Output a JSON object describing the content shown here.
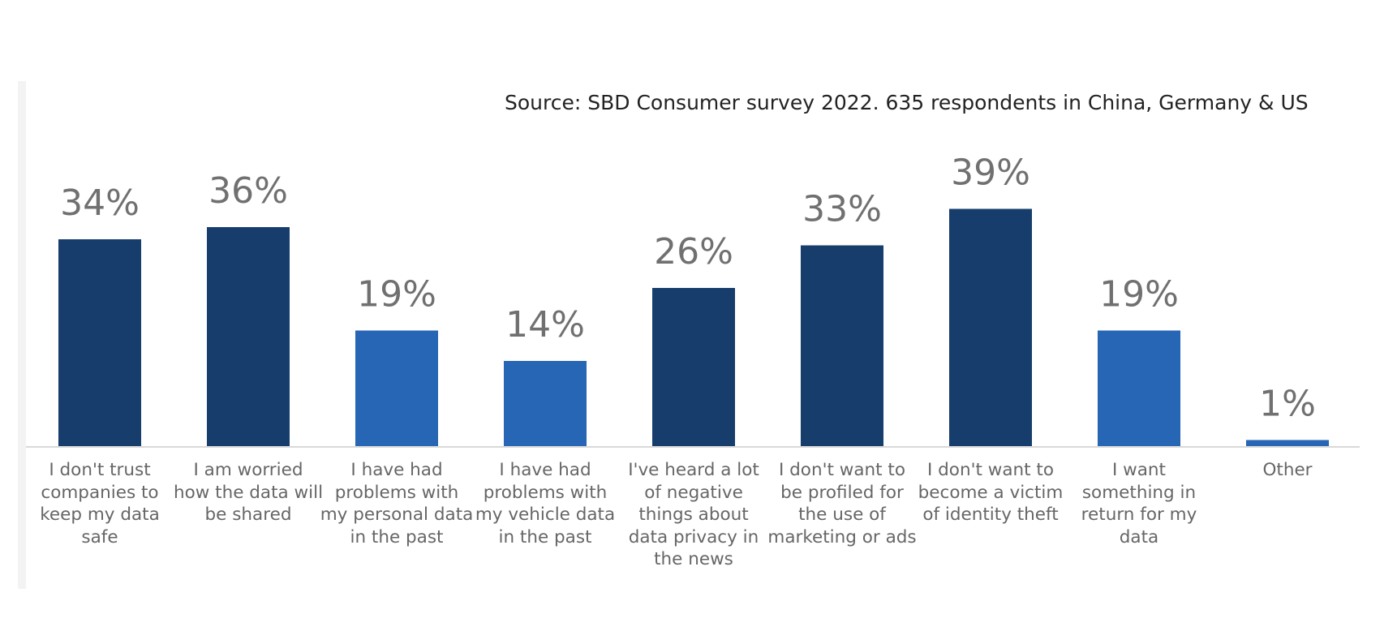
{
  "source_note": "Source: SBD Consumer survey 2022. 635 respondents in China, Germany & US",
  "colors": {
    "dark": "#163d6b",
    "light": "#2766b4",
    "label": "#707070",
    "axis": "#d9d9d9"
  },
  "chart_data": {
    "type": "bar",
    "title": "",
    "xlabel": "",
    "ylabel": "",
    "ylim": [
      0,
      45
    ],
    "categories": [
      "I don't trust companies to keep my data safe",
      "I am worried how the data will be shared",
      "I have had problems with my personal data in the past",
      "I have had problems with my vehicle data in the past",
      "I've heard a lot of negative things about data privacy in the news",
      "I don't want to be profiled for the use of marketing or ads",
      "I don't want to become a victim of identity theft",
      "I want something in return for my data",
      "Other"
    ],
    "category_lines": [
      [
        "I don't trust",
        "companies to",
        "keep my data",
        "safe"
      ],
      [
        "I am worried",
        "how the data will",
        "be shared"
      ],
      [
        "I have had",
        "problems with",
        "my personal data",
        "in the past"
      ],
      [
        "I have had",
        "problems with",
        "my vehicle data",
        "in the past"
      ],
      [
        "I've heard a lot",
        "of negative",
        "things about",
        "data privacy in",
        "the news"
      ],
      [
        "I don't want to",
        "be profiled for",
        "the use of",
        "marketing or ads"
      ],
      [
        "I don't want to",
        "become a victim",
        "of identity theft"
      ],
      [
        "I want",
        "something in",
        "return for my",
        "data"
      ],
      [
        "Other"
      ]
    ],
    "values": [
      34,
      36,
      19,
      14,
      26,
      33,
      39,
      19,
      1
    ],
    "value_labels": [
      "34%",
      "36%",
      "19%",
      "14%",
      "26%",
      "33%",
      "39%",
      "19%",
      "1%"
    ],
    "bar_colors": [
      "dark",
      "dark",
      "light",
      "light",
      "dark",
      "dark",
      "dark",
      "light",
      "light"
    ],
    "grid": false,
    "legend": "none"
  }
}
